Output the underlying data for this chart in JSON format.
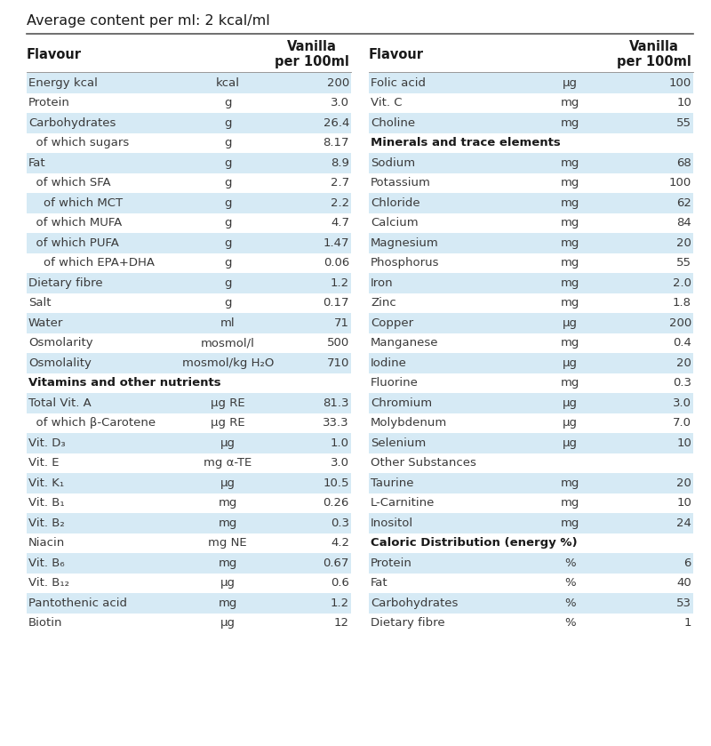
{
  "title": "Average content per ml: 2 kcal/ml",
  "left_rows": [
    {
      "name": "Energy kcal",
      "unit": "kcal",
      "value": "200",
      "bold": false,
      "shaded": true
    },
    {
      "name": "Protein",
      "unit": "g",
      "value": "3.0",
      "bold": false,
      "shaded": false
    },
    {
      "name": "Carbohydrates",
      "unit": "g",
      "value": "26.4",
      "bold": false,
      "shaded": true
    },
    {
      "name": "  of which sugars",
      "unit": "g",
      "value": "8.17",
      "bold": false,
      "shaded": false
    },
    {
      "name": "Fat",
      "unit": "g",
      "value": "8.9",
      "bold": false,
      "shaded": true
    },
    {
      "name": "  of which SFA",
      "unit": "g",
      "value": "2.7",
      "bold": false,
      "shaded": false
    },
    {
      "name": "    of which MCT",
      "unit": "g",
      "value": "2.2",
      "bold": false,
      "shaded": true
    },
    {
      "name": "  of which MUFA",
      "unit": "g",
      "value": "4.7",
      "bold": false,
      "shaded": false
    },
    {
      "name": "  of which PUFA",
      "unit": "g",
      "value": "1.47",
      "bold": false,
      "shaded": true
    },
    {
      "name": "    of which EPA+DHA",
      "unit": "g",
      "value": "0.06",
      "bold": false,
      "shaded": false
    },
    {
      "name": "Dietary fibre",
      "unit": "g",
      "value": "1.2",
      "bold": false,
      "shaded": true
    },
    {
      "name": "Salt",
      "unit": "g",
      "value": "0.17",
      "bold": false,
      "shaded": false
    },
    {
      "name": "Water",
      "unit": "ml",
      "value": "71",
      "bold": false,
      "shaded": true
    },
    {
      "name": "Osmolarity",
      "unit": "mosmol/l",
      "value": "500",
      "bold": false,
      "shaded": false
    },
    {
      "name": "Osmolality",
      "unit": "mosmol/kg H₂O",
      "value": "710",
      "bold": false,
      "shaded": true
    },
    {
      "name": "Vitamins and other nutrients",
      "unit": "",
      "value": "",
      "bold": true,
      "shaded": false
    },
    {
      "name": "Total Vit. A",
      "unit": "μg RE",
      "value": "81.3",
      "bold": false,
      "shaded": true
    },
    {
      "name": "  of which β-Carotene",
      "unit": "μg RE",
      "value": "33.3",
      "bold": false,
      "shaded": false
    },
    {
      "name": "Vit. D₃",
      "unit": "μg",
      "value": "1.0",
      "bold": false,
      "shaded": true
    },
    {
      "name": "Vit. E",
      "unit": "mg α-TE",
      "value": "3.0",
      "bold": false,
      "shaded": false
    },
    {
      "name": "Vit. K₁",
      "unit": "μg",
      "value": "10.5",
      "bold": false,
      "shaded": true
    },
    {
      "name": "Vit. B₁",
      "unit": "mg",
      "value": "0.26",
      "bold": false,
      "shaded": false
    },
    {
      "name": "Vit. B₂",
      "unit": "mg",
      "value": "0.3",
      "bold": false,
      "shaded": true
    },
    {
      "name": "Niacin",
      "unit": "mg NE",
      "value": "4.2",
      "bold": false,
      "shaded": false
    },
    {
      "name": "Vit. B₆",
      "unit": "mg",
      "value": "0.67",
      "bold": false,
      "shaded": true
    },
    {
      "name": "Vit. B₁₂",
      "unit": "μg",
      "value": "0.6",
      "bold": false,
      "shaded": false
    },
    {
      "name": "Pantothenic acid",
      "unit": "mg",
      "value": "1.2",
      "bold": false,
      "shaded": true
    },
    {
      "name": "Biotin",
      "unit": "μg",
      "value": "12",
      "bold": false,
      "shaded": false
    }
  ],
  "right_rows": [
    {
      "name": "Folic acid",
      "unit": "μg",
      "value": "100",
      "bold": false,
      "shaded": true
    },
    {
      "name": "Vit. C",
      "unit": "mg",
      "value": "10",
      "bold": false,
      "shaded": false
    },
    {
      "name": "Choline",
      "unit": "mg",
      "value": "55",
      "bold": false,
      "shaded": true
    },
    {
      "name": "Minerals and trace elements",
      "unit": "",
      "value": "",
      "bold": true,
      "shaded": false
    },
    {
      "name": "Sodium",
      "unit": "mg",
      "value": "68",
      "bold": false,
      "shaded": true
    },
    {
      "name": "Potassium",
      "unit": "mg",
      "value": "100",
      "bold": false,
      "shaded": false
    },
    {
      "name": "Chloride",
      "unit": "mg",
      "value": "62",
      "bold": false,
      "shaded": true
    },
    {
      "name": "Calcium",
      "unit": "mg",
      "value": "84",
      "bold": false,
      "shaded": false
    },
    {
      "name": "Magnesium",
      "unit": "mg",
      "value": "20",
      "bold": false,
      "shaded": true
    },
    {
      "name": "Phosphorus",
      "unit": "mg",
      "value": "55",
      "bold": false,
      "shaded": false
    },
    {
      "name": "Iron",
      "unit": "mg",
      "value": "2.0",
      "bold": false,
      "shaded": true
    },
    {
      "name": "Zinc",
      "unit": "mg",
      "value": "1.8",
      "bold": false,
      "shaded": false
    },
    {
      "name": "Copper",
      "unit": "μg",
      "value": "200",
      "bold": false,
      "shaded": true
    },
    {
      "name": "Manganese",
      "unit": "mg",
      "value": "0.4",
      "bold": false,
      "shaded": false
    },
    {
      "name": "Iodine",
      "unit": "μg",
      "value": "20",
      "bold": false,
      "shaded": true
    },
    {
      "name": "Fluorine",
      "unit": "mg",
      "value": "0.3",
      "bold": false,
      "shaded": false
    },
    {
      "name": "Chromium",
      "unit": "μg",
      "value": "3.0",
      "bold": false,
      "shaded": true
    },
    {
      "name": "Molybdenum",
      "unit": "μg",
      "value": "7.0",
      "bold": false,
      "shaded": false
    },
    {
      "name": "Selenium",
      "unit": "μg",
      "value": "10",
      "bold": false,
      "shaded": true
    },
    {
      "name": "Other Substances",
      "unit": "",
      "value": "",
      "bold": false,
      "shaded": false
    },
    {
      "name": "Taurine",
      "unit": "mg",
      "value": "20",
      "bold": false,
      "shaded": true
    },
    {
      "name": "L-Carnitine",
      "unit": "mg",
      "value": "10",
      "bold": false,
      "shaded": false
    },
    {
      "name": "Inositol",
      "unit": "mg",
      "value": "24",
      "bold": false,
      "shaded": true
    },
    {
      "name": "Caloric Distribution (energy %)",
      "unit": "",
      "value": "",
      "bold": true,
      "shaded": false
    },
    {
      "name": "Protein",
      "unit": "%",
      "value": "6",
      "bold": false,
      "shaded": true
    },
    {
      "name": "Fat",
      "unit": "%",
      "value": "40",
      "bold": false,
      "shaded": false
    },
    {
      "name": "Carbohydrates",
      "unit": "%",
      "value": "53",
      "bold": false,
      "shaded": true
    },
    {
      "name": "Dietary fibre",
      "unit": "%",
      "value": "1",
      "bold": false,
      "shaded": false
    }
  ],
  "shade_color": "#d6eaf5",
  "bg_color": "#ffffff",
  "text_color": "#3a3a3a",
  "bold_color": "#1a1a1a",
  "line_color": "#555555",
  "font_size": 9.5,
  "title_font_size": 11.5
}
